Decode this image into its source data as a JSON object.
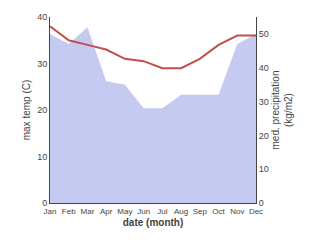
{
  "chart_data": {
    "type": "combo",
    "categories": [
      "Jan",
      "Feb",
      "Mar",
      "Apr",
      "May",
      "Jun",
      "Jul",
      "Aug",
      "Sep",
      "Oct",
      "Nov",
      "Dec"
    ],
    "series": [
      {
        "type": "area",
        "axis": "y2",
        "color": "#c5caf0",
        "values": [
          50,
          47,
          52,
          36,
          35,
          28,
          28,
          32,
          32,
          32,
          47,
          50
        ]
      },
      {
        "type": "line",
        "color": "#c0504d",
        "values": [
          38,
          35,
          34,
          33,
          31,
          30.5,
          29,
          29,
          31,
          34,
          36,
          36
        ]
      }
    ],
    "xlabel": "date (month)",
    "ylabel": "max temp (C)",
    "y2label": "med. precipitation\n(kg/m2)",
    "ylim": [
      0,
      40
    ],
    "yticks": [
      0,
      10,
      20,
      30,
      40
    ],
    "y2lim": [
      0,
      55
    ],
    "y2ticks": [
      0,
      10,
      20,
      30,
      40,
      50
    ],
    "grid": false
  }
}
